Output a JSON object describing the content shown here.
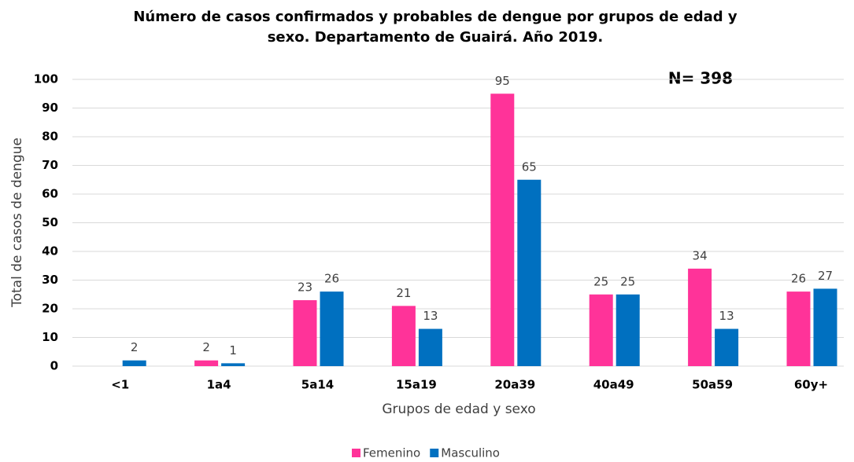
{
  "chart_data": {
    "type": "bar",
    "title": [
      "Número de casos confirmados y probables de dengue por grupos de edad y",
      "sexo. Departamento de Guairá. Año 2019."
    ],
    "annotation": "N= 398",
    "x_label": "Grupos de edad y sexo",
    "y_label": "Total de casos de dengue",
    "categories": [
      "<1",
      "1a4",
      "5a14",
      "15a19",
      "20a39",
      "40a49",
      "50a59",
      "60y+"
    ],
    "series": [
      {
        "name": "Femenino",
        "color": "#ff3399",
        "values": [
          null,
          2,
          23,
          21,
          95,
          25,
          34,
          26
        ]
      },
      {
        "name": "Masculino",
        "color": "#0070c0",
        "values": [
          2,
          1,
          26,
          13,
          65,
          25,
          13,
          27
        ]
      }
    ],
    "ylim": [
      0,
      100
    ],
    "yticks": [
      0,
      10,
      20,
      30,
      40,
      50,
      60,
      70,
      80,
      90,
      100
    ],
    "grid": true,
    "legend": "bottom"
  }
}
